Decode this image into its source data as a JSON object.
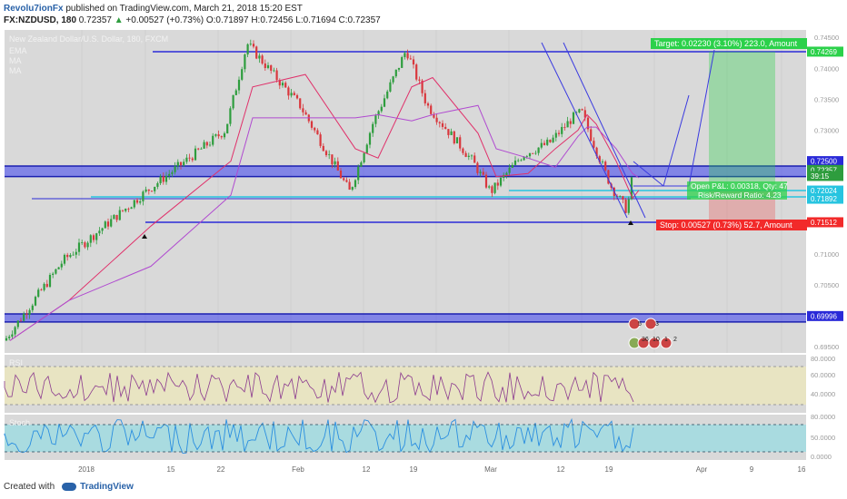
{
  "header": {
    "author": "Revolu7ionFx",
    "published": "published on TradingView.com, March 21, 2018 15:20 EST",
    "symbol": "FX:NZDUSD, 180",
    "last": "0.72357",
    "change": "+0.00527 (+0.73%)",
    "open": "O:0.71897",
    "high": "H:0.72456",
    "low": "L:0.71694",
    "close": "C:0.72357"
  },
  "legend": {
    "title": "New Zealand Dollar/U.S. Dollar, 180, FXCM",
    "lines": [
      "EMA",
      "MA",
      "MA"
    ]
  },
  "price_tags": [
    "0.74269",
    "0.72500",
    "0.72357",
    "39:15",
    "0.72024",
    "0.71892",
    "0.71512",
    "0.69996"
  ],
  "annotations": {
    "target": "Target: 0.02230 (3.10%) 223.0, Amount",
    "stop": "Stop: 0.00527 (0.73%) 52.7, Amount",
    "open_pl": "Open P&L: 0.00318, Qty: 47",
    "rr": "Risk/Reward Ratio: 4.23"
  },
  "events": [
    "5",
    "3",
    "36",
    "10",
    "1",
    "2"
  ],
  "x_axis": [
    "2018",
    "15",
    "22",
    "Feb",
    "12",
    "19",
    "Mar",
    "12",
    "19",
    "Apr",
    "9",
    "16"
  ],
  "price_axis": [
    "0.74500",
    "0.74000",
    "0.73500",
    "0.73000",
    "0.72500",
    "0.72000",
    "0.71500",
    "0.71000",
    "0.70500",
    "0.70000",
    "0.69500"
  ],
  "rsi": {
    "label": "RSI",
    "levels": [
      "80.0000",
      "60.0000",
      "40.0000"
    ]
  },
  "stoch": {
    "label": "Stoch",
    "levels": [
      "80.0000",
      "50.0000",
      "0.0000"
    ]
  },
  "footer": {
    "created_with": "Created with",
    "brand": "TradingView"
  },
  "colors": {
    "up": "#2e9d3e",
    "down": "#d9373d",
    "zone": "#3b3ff0",
    "level": "#27c4e0",
    "target": "#2bd14a",
    "stop": "#f22a2a"
  },
  "chart_data": {
    "type": "line",
    "x": [
      "Jan 2",
      "Jan 8",
      "Jan 15",
      "Jan 22",
      "Jan 25",
      "Feb 1",
      "Feb 8",
      "Feb 12",
      "Feb 15",
      "Feb 19",
      "Feb 26",
      "Mar 1",
      "Mar 5",
      "Mar 8",
      "Mar 12",
      "Mar 14",
      "Mar 16",
      "Mar 19",
      "Mar 20",
      "Mar 21"
    ],
    "series": [
      {
        "values": [
          0.696,
          0.709,
          0.72,
          0.73,
          0.744,
          0.734,
          0.72,
          0.731,
          0.743,
          0.734,
          0.725,
          0.72,
          0.726,
          0.728,
          0.732,
          0.733,
          0.729,
          0.721,
          0.717,
          0.7236
        ]
      }
    ],
    "zones": [
      [
        0.7225,
        0.7242
      ],
      [
        0.699,
        0.7003
      ]
    ],
    "levels": [
      0.71892,
      0.72024,
      0.71512
    ],
    "target": 0.74269,
    "ylim": [
      0.694,
      0.7462
    ],
    "title": "New Zealand Dollar/U.S. Dollar, 180, FXCM"
  }
}
